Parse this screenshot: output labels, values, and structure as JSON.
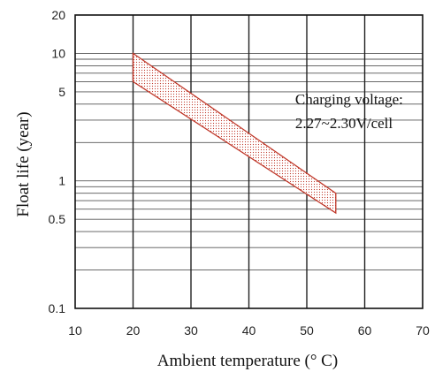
{
  "chart_data": {
    "type": "area",
    "xlabel": "Ambient temperature (° C)",
    "ylabel": "Float life (year)",
    "xlim": [
      10,
      70
    ],
    "ylim": [
      0.1,
      20
    ],
    "y_scale": "log",
    "grid": true,
    "x_ticks": [
      "10",
      "20",
      "30",
      "40",
      "50",
      "60",
      "70"
    ],
    "y_ticks": [
      {
        "value": 20,
        "label": "20"
      },
      {
        "value": 10,
        "label": "10"
      },
      {
        "value": 5,
        "label": "5"
      },
      {
        "value": 1,
        "label": "1"
      },
      {
        "value": 0.5,
        "label": "0.5"
      },
      {
        "value": 0.1,
        "label": "0.1"
      }
    ],
    "band": {
      "upper": [
        {
          "x": 20,
          "y": 10
        },
        {
          "x": 55,
          "y": 0.8
        }
      ],
      "lower": [
        {
          "x": 20,
          "y": 6
        },
        {
          "x": 55,
          "y": 0.56
        }
      ],
      "color": "#c0392b"
    },
    "annotations": [
      {
        "text": "Charging voltage:",
        "x": 48,
        "y": 4.0
      },
      {
        "text": "2.27~2.30V/cell",
        "x": 48,
        "y": 2.6
      }
    ]
  }
}
